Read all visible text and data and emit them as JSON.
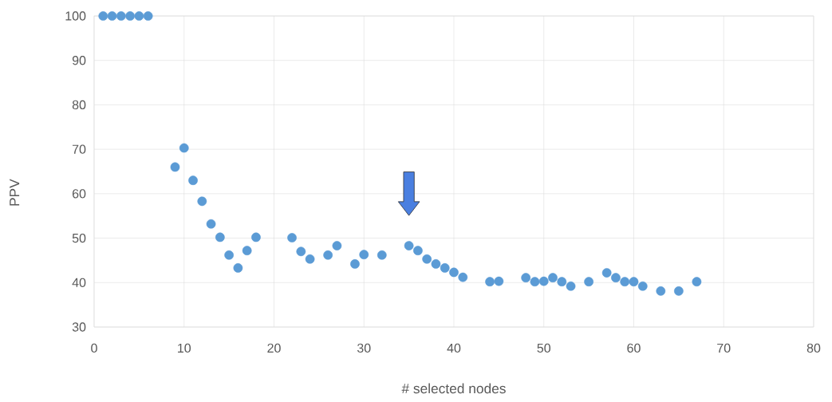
{
  "chart_data": {
    "type": "scatter",
    "xlabel": "# selected nodes",
    "ylabel": "PPV",
    "x": [
      1,
      2,
      3,
      4,
      5,
      6,
      9,
      10,
      11,
      12,
      13,
      14,
      15,
      16,
      17,
      18,
      22,
      23,
      24,
      26,
      27,
      29,
      30,
      32,
      35,
      36,
      37,
      38,
      39,
      40,
      41,
      44,
      45,
      48,
      49,
      50,
      51,
      52,
      53,
      55,
      57,
      58,
      59,
      60,
      61,
      63,
      65,
      67
    ],
    "values": [
      100,
      100,
      100,
      100,
      100,
      100,
      66,
      70.3,
      63,
      58.3,
      53.2,
      50.2,
      46.2,
      43.3,
      47.2,
      50.2,
      50.1,
      47,
      45.3,
      46.2,
      48.3,
      44.2,
      46.3,
      46.2,
      48.3,
      47.2,
      45.3,
      44.2,
      43.3,
      42.3,
      41.2,
      40.2,
      40.3,
      41.1,
      40.2,
      40.3,
      41.1,
      40.2,
      39.2,
      40.2,
      42.2,
      41.1,
      40.2,
      40.2,
      39.2,
      38.1,
      38.1,
      40.2
    ],
    "color": "#5b9bd5",
    "marker": "circle",
    "xlim": [
      0,
      80
    ],
    "xticks": [
      0,
      10,
      20,
      30,
      40,
      50,
      60,
      70,
      80
    ],
    "ylim": [
      30,
      100
    ],
    "yticks": [
      30,
      40,
      50,
      60,
      70,
      80,
      90,
      100
    ],
    "grid": true
  }
}
